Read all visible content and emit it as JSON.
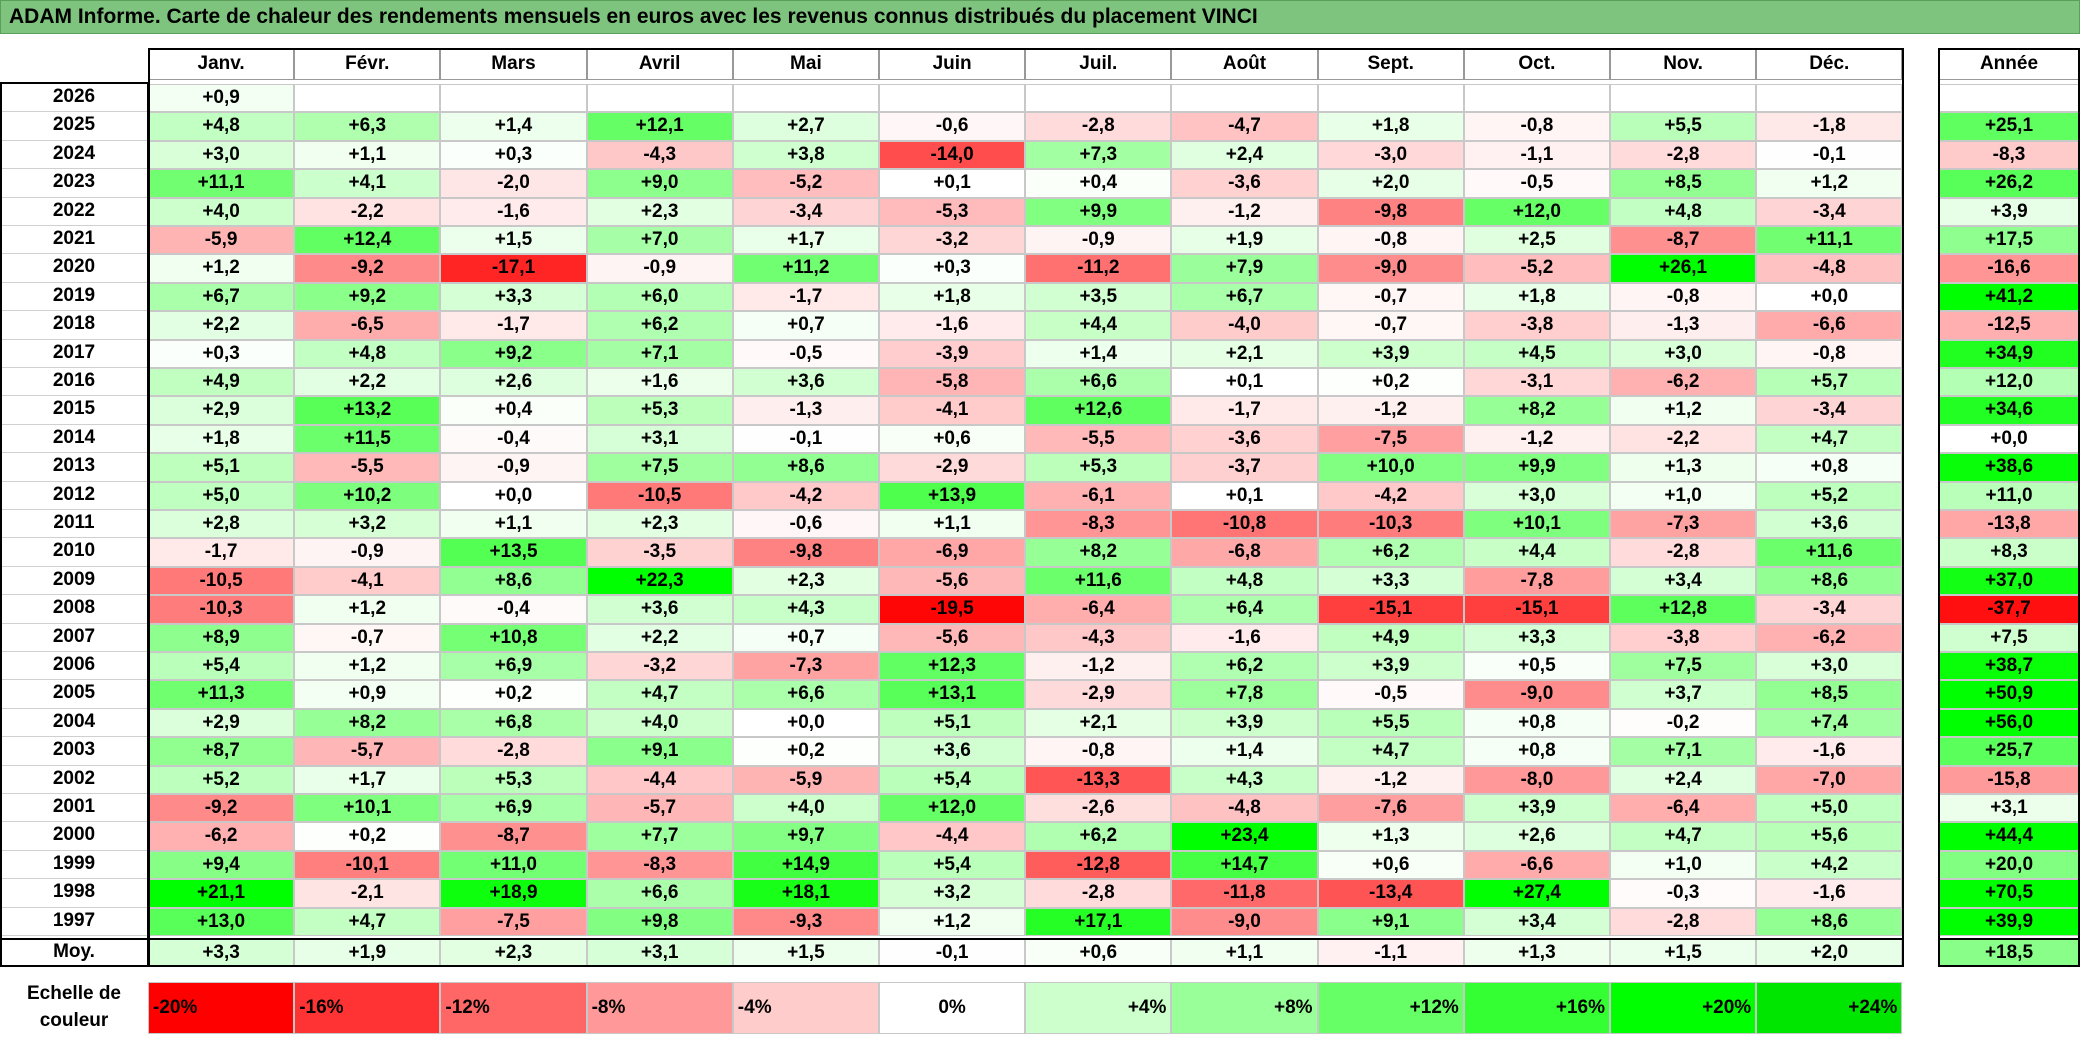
{
  "title": "ADAM Informe. Carte de chaleur des rendements mensuels en euros avec les revenus connus distribués du placement VINCI",
  "chart_data": {
    "type": "heatmap",
    "x_categories": [
      "Janv.",
      "Févr.",
      "Mars",
      "Avril",
      "Mai",
      "Juin",
      "Juil.",
      "Août",
      "Sept.",
      "Oct.",
      "Nov.",
      "Déc."
    ],
    "annual_label": "Année",
    "rows": [
      {
        "year": "2026",
        "values": [
          "+0,9",
          "",
          "",
          "",
          "",
          "",
          "",
          "",
          "",
          "",
          "",
          ""
        ],
        "annual": ""
      },
      {
        "year": "2025",
        "values": [
          "+4,8",
          "+6,3",
          "+1,4",
          "+12,1",
          "+2,7",
          "-0,6",
          "-2,8",
          "-4,7",
          "+1,8",
          "-0,8",
          "+5,5",
          "-1,8"
        ],
        "annual": "+25,1"
      },
      {
        "year": "2024",
        "values": [
          "+3,0",
          "+1,1",
          "+0,3",
          "-4,3",
          "+3,8",
          "-14,0",
          "+7,3",
          "+2,4",
          "-3,0",
          "-1,1",
          "-2,8",
          "-0,1"
        ],
        "annual": "-8,3"
      },
      {
        "year": "2023",
        "values": [
          "+11,1",
          "+4,1",
          "-2,0",
          "+9,0",
          "-5,2",
          "+0,1",
          "+0,4",
          "-3,6",
          "+2,0",
          "-0,5",
          "+8,5",
          "+1,2"
        ],
        "annual": "+26,2"
      },
      {
        "year": "2022",
        "values": [
          "+4,0",
          "-2,2",
          "-1,6",
          "+2,3",
          "-3,4",
          "-5,3",
          "+9,9",
          "-1,2",
          "-9,8",
          "+12,0",
          "+4,8",
          "-3,4"
        ],
        "annual": "+3,9"
      },
      {
        "year": "2021",
        "values": [
          "-5,9",
          "+12,4",
          "+1,5",
          "+7,0",
          "+1,7",
          "-3,2",
          "-0,9",
          "+1,9",
          "-0,8",
          "+2,5",
          "-8,7",
          "+11,1"
        ],
        "annual": "+17,5"
      },
      {
        "year": "2020",
        "values": [
          "+1,2",
          "-9,2",
          "-17,1",
          "-0,9",
          "+11,2",
          "+0,3",
          "-11,2",
          "+7,9",
          "-9,0",
          "-5,2",
          "+26,1",
          "-4,8"
        ],
        "annual": "-16,6"
      },
      {
        "year": "2019",
        "values": [
          "+6,7",
          "+9,2",
          "+3,3",
          "+6,0",
          "-1,7",
          "+1,8",
          "+3,5",
          "+6,7",
          "-0,7",
          "+1,8",
          "-0,8",
          "+0,0"
        ],
        "annual": "+41,2"
      },
      {
        "year": "2018",
        "values": [
          "+2,2",
          "-6,5",
          "-1,7",
          "+6,2",
          "+0,7",
          "-1,6",
          "+4,4",
          "-4,0",
          "-0,7",
          "-3,8",
          "-1,3",
          "-6,6"
        ],
        "annual": "-12,5"
      },
      {
        "year": "2017",
        "values": [
          "+0,3",
          "+4,8",
          "+9,2",
          "+7,1",
          "-0,5",
          "-3,9",
          "+1,4",
          "+2,1",
          "+3,9",
          "+4,5",
          "+3,0",
          "-0,8"
        ],
        "annual": "+34,9"
      },
      {
        "year": "2016",
        "values": [
          "+4,9",
          "+2,2",
          "+2,6",
          "+1,6",
          "+3,6",
          "-5,8",
          "+6,6",
          "+0,1",
          "+0,2",
          "-3,1",
          "-6,2",
          "+5,7"
        ],
        "annual": "+12,0"
      },
      {
        "year": "2015",
        "values": [
          "+2,9",
          "+13,2",
          "+0,4",
          "+5,3",
          "-1,3",
          "-4,1",
          "+12,6",
          "-1,7",
          "-1,2",
          "+8,2",
          "+1,2",
          "-3,4"
        ],
        "annual": "+34,6"
      },
      {
        "year": "2014",
        "values": [
          "+1,8",
          "+11,5",
          "-0,4",
          "+3,1",
          "-0,1",
          "+0,6",
          "-5,5",
          "-3,6",
          "-7,5",
          "-1,2",
          "-2,2",
          "+4,7"
        ],
        "annual": "+0,0"
      },
      {
        "year": "2013",
        "values": [
          "+5,1",
          "-5,5",
          "-0,9",
          "+7,5",
          "+8,6",
          "-2,9",
          "+5,3",
          "-3,7",
          "+10,0",
          "+9,9",
          "+1,3",
          "+0,8"
        ],
        "annual": "+38,6"
      },
      {
        "year": "2012",
        "values": [
          "+5,0",
          "+10,2",
          "+0,0",
          "-10,5",
          "-4,2",
          "+13,9",
          "-6,1",
          "+0,1",
          "-4,2",
          "+3,0",
          "+1,0",
          "+5,2"
        ],
        "annual": "+11,0"
      },
      {
        "year": "2011",
        "values": [
          "+2,8",
          "+3,2",
          "+1,1",
          "+2,3",
          "-0,6",
          "+1,1",
          "-8,3",
          "-10,8",
          "-10,3",
          "+10,1",
          "-7,3",
          "+3,6"
        ],
        "annual": "-13,8"
      },
      {
        "year": "2010",
        "values": [
          "-1,7",
          "-0,9",
          "+13,5",
          "-3,5",
          "-9,8",
          "-6,9",
          "+8,2",
          "-6,8",
          "+6,2",
          "+4,4",
          "-2,8",
          "+11,6"
        ],
        "annual": "+8,3"
      },
      {
        "year": "2009",
        "values": [
          "-10,5",
          "-4,1",
          "+8,6",
          "+22,3",
          "+2,3",
          "-5,6",
          "+11,6",
          "+4,8",
          "+3,3",
          "-7,8",
          "+3,4",
          "+8,6"
        ],
        "annual": "+37,0"
      },
      {
        "year": "2008",
        "values": [
          "-10,3",
          "+1,2",
          "-0,4",
          "+3,6",
          "+4,3",
          "-19,5",
          "-6,4",
          "+6,4",
          "-15,1",
          "-15,1",
          "+12,8",
          "-3,4"
        ],
        "annual": "-37,7"
      },
      {
        "year": "2007",
        "values": [
          "+8,9",
          "-0,7",
          "+10,8",
          "+2,2",
          "+0,7",
          "-5,6",
          "-4,3",
          "-1,6",
          "+4,9",
          "+3,3",
          "-3,8",
          "-6,2"
        ],
        "annual": "+7,5"
      },
      {
        "year": "2006",
        "values": [
          "+5,4",
          "+1,2",
          "+6,9",
          "-3,2",
          "-7,3",
          "+12,3",
          "-1,2",
          "+6,2",
          "+3,9",
          "+0,5",
          "+7,5",
          "+3,0"
        ],
        "annual": "+38,7"
      },
      {
        "year": "2005",
        "values": [
          "+11,3",
          "+0,9",
          "+0,2",
          "+4,7",
          "+6,6",
          "+13,1",
          "-2,9",
          "+7,8",
          "-0,5",
          "-9,0",
          "+3,7",
          "+8,5"
        ],
        "annual": "+50,9"
      },
      {
        "year": "2004",
        "values": [
          "+2,9",
          "+8,2",
          "+6,8",
          "+4,0",
          "+0,0",
          "+5,1",
          "+2,1",
          "+3,9",
          "+5,5",
          "+0,8",
          "-0,2",
          "+7,4"
        ],
        "annual": "+56,0"
      },
      {
        "year": "2003",
        "values": [
          "+8,7",
          "-5,7",
          "-2,8",
          "+9,1",
          "+0,2",
          "+3,6",
          "-0,8",
          "+1,4",
          "+4,7",
          "+0,8",
          "+7,1",
          "-1,6"
        ],
        "annual": "+25,7"
      },
      {
        "year": "2002",
        "values": [
          "+5,2",
          "+1,7",
          "+5,3",
          "-4,4",
          "-5,9",
          "+5,4",
          "-13,3",
          "+4,3",
          "-1,2",
          "-8,0",
          "+2,4",
          "-7,0"
        ],
        "annual": "-15,8"
      },
      {
        "year": "2001",
        "values": [
          "-9,2",
          "+10,1",
          "+6,9",
          "-5,7",
          "+4,0",
          "+12,0",
          "-2,6",
          "-4,8",
          "-7,6",
          "+3,9",
          "-6,4",
          "+5,0"
        ],
        "annual": "+3,1"
      },
      {
        "year": "2000",
        "values": [
          "-6,2",
          "+0,2",
          "-8,7",
          "+7,7",
          "+9,7",
          "-4,4",
          "+6,2",
          "+23,4",
          "+1,3",
          "+2,6",
          "+4,7",
          "+5,6"
        ],
        "annual": "+44,4"
      },
      {
        "year": "1999",
        "values": [
          "+9,4",
          "-10,1",
          "+11,0",
          "-8,3",
          "+14,9",
          "+5,4",
          "-12,8",
          "+14,7",
          "+0,6",
          "-6,6",
          "+1,0",
          "+4,2"
        ],
        "annual": "+20,0"
      },
      {
        "year": "1998",
        "values": [
          "+21,1",
          "-2,1",
          "+18,9",
          "+6,6",
          "+18,1",
          "+3,2",
          "-2,8",
          "-11,8",
          "-13,4",
          "+27,4",
          "-0,3",
          "-1,6"
        ],
        "annual": "+70,5"
      },
      {
        "year": "1997",
        "values": [
          "+13,0",
          "+4,7",
          "-7,5",
          "+9,8",
          "-9,3",
          "+1,2",
          "+17,1",
          "-9,0",
          "+9,1",
          "+3,4",
          "-2,8",
          "+8,6"
        ],
        "annual": "+39,9"
      }
    ],
    "average": {
      "label": "Moy.",
      "values": [
        "+3,3",
        "+1,9",
        "+2,3",
        "+3,1",
        "+1,5",
        "-0,1",
        "+0,6",
        "+1,1",
        "-1,1",
        "+1,3",
        "+1,5",
        "+2,0"
      ],
      "annual": "+18,5"
    },
    "color_scale": {
      "label": "Echelle de couleur",
      "stops": [
        {
          "label": "-20%",
          "value": -20,
          "color": "#ff0000"
        },
        {
          "label": "-16%",
          "value": -16,
          "color": "#ff3333"
        },
        {
          "label": "-12%",
          "value": -12,
          "color": "#ff6666"
        },
        {
          "label": "-8%",
          "value": -8,
          "color": "#ff9999"
        },
        {
          "label": "-4%",
          "value": -4,
          "color": "#ffcccc"
        },
        {
          "label": "0%",
          "value": 0,
          "color": "#ffffff"
        },
        {
          "label": "+4%",
          "value": 4,
          "color": "#ccffcc"
        },
        {
          "label": "+8%",
          "value": 8,
          "color": "#99ff99"
        },
        {
          "label": "+12%",
          "value": 12,
          "color": "#66ff66"
        },
        {
          "label": "+16%",
          "value": 16,
          "color": "#33ff33"
        },
        {
          "label": "+20%",
          "value": 20,
          "color": "#00ff00"
        },
        {
          "label": "+24%",
          "value": 24,
          "color": "#00e600"
        }
      ]
    }
  }
}
